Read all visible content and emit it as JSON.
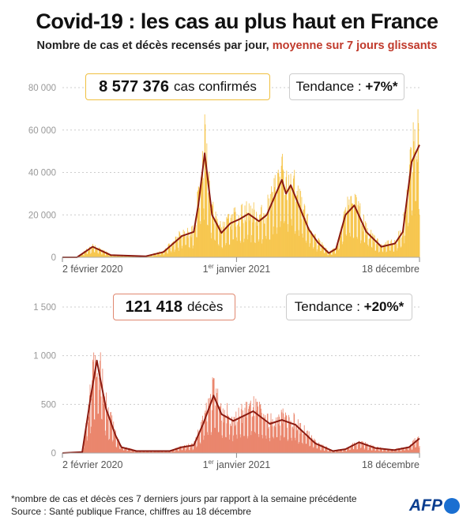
{
  "title": "Covid-19 : les cas au plus haut en France",
  "subtitle": {
    "main": "Nombre de cas et décès recensés par jour,",
    "highlight": "moyenne sur 7 jours glissants"
  },
  "colors": {
    "cases_bars": "#f6bf3a",
    "deaths_bars": "#e8775a",
    "average_line": "#8b1a10",
    "grid": "#cccccc"
  },
  "chart_data": [
    {
      "type": "bar",
      "name": "cas confirmés",
      "total_value": "8 577 376",
      "total_label": "cas confirmés",
      "trend_label": "Tendance :",
      "trend_value": "+7%*",
      "xlim": [
        "2020-02-02",
        "2021-12-18"
      ],
      "x_ticks": [
        {
          "date": "2020-02-02",
          "label": "2 février 2020"
        },
        {
          "date": "2021-01-01",
          "label_pre": "1",
          "label_sup": "er",
          "label_post": " janvier 2021"
        },
        {
          "date": "2021-12-18",
          "label": "18 décembre"
        }
      ],
      "ylim": [
        0,
        80000
      ],
      "y_ticks": [
        {
          "v": 0,
          "label": "0"
        },
        {
          "v": 20000,
          "label": "20 000"
        },
        {
          "v": 40000,
          "label": "40 000"
        },
        {
          "v": 60000,
          "label": "60 000"
        },
        {
          "v": 80000,
          "label": "80 000"
        }
      ],
      "grid": true,
      "moving_average": [
        [
          "2020-02-02",
          0
        ],
        [
          "2020-03-01",
          0
        ],
        [
          "2020-03-31",
          5000
        ],
        [
          "2020-05-05",
          1000
        ],
        [
          "2020-07-11",
          500
        ],
        [
          "2020-08-14",
          2500
        ],
        [
          "2020-09-18",
          10000
        ],
        [
          "2020-10-11",
          12000
        ],
        [
          "2020-10-20",
          25000
        ],
        [
          "2020-11-01",
          49000
        ],
        [
          "2020-11-15",
          20000
        ],
        [
          "2020-12-03",
          11500
        ],
        [
          "2020-12-20",
          16000
        ],
        [
          "2021-01-07",
          18000
        ],
        [
          "2021-01-24",
          20500
        ],
        [
          "2021-02-13",
          17000
        ],
        [
          "2021-02-28",
          20000
        ],
        [
          "2021-03-29",
          36500
        ],
        [
          "2021-04-06",
          30000
        ],
        [
          "2021-04-15",
          34000
        ],
        [
          "2021-05-08",
          20000
        ],
        [
          "2021-05-20",
          13000
        ],
        [
          "2021-06-06",
          7000
        ],
        [
          "2021-06-27",
          2000
        ],
        [
          "2021-07-11",
          4000
        ],
        [
          "2021-07-29",
          20000
        ],
        [
          "2021-08-15",
          24500
        ],
        [
          "2021-09-07",
          12000
        ],
        [
          "2021-10-06",
          5000
        ],
        [
          "2021-11-01",
          6500
        ],
        [
          "2021-11-16",
          12000
        ],
        [
          "2021-12-03",
          45000
        ],
        [
          "2021-12-18",
          53000
        ]
      ]
    },
    {
      "type": "bar",
      "name": "décès",
      "total_value": "121 418",
      "total_label": "décès",
      "trend_label": "Tendance :",
      "trend_value": "+20%*",
      "xlim": [
        "2020-02-02",
        "2021-12-18"
      ],
      "x_ticks": [
        {
          "date": "2020-02-02",
          "label": "2 février 2020"
        },
        {
          "date": "2021-01-01",
          "label_pre": "1",
          "label_sup": "er",
          "label_post": " janvier 2021"
        },
        {
          "date": "2021-12-18",
          "label": "18 décembre"
        }
      ],
      "ylim": [
        0,
        1500
      ],
      "y_ticks": [
        {
          "v": 0,
          "label": "0"
        },
        {
          "v": 500,
          "label": "500"
        },
        {
          "v": 1000,
          "label": "1 000"
        },
        {
          "v": 1500,
          "label": "1 500"
        }
      ],
      "grid": true,
      "moving_average": [
        [
          "2020-02-02",
          0
        ],
        [
          "2020-03-11",
          10
        ],
        [
          "2020-03-28",
          600
        ],
        [
          "2020-04-08",
          950
        ],
        [
          "2020-04-14",
          780
        ],
        [
          "2020-04-26",
          450
        ],
        [
          "2020-05-14",
          180
        ],
        [
          "2020-05-25",
          60
        ],
        [
          "2020-06-23",
          20
        ],
        [
          "2020-08-26",
          20
        ],
        [
          "2020-09-18",
          60
        ],
        [
          "2020-10-11",
          80
        ],
        [
          "2020-10-29",
          300
        ],
        [
          "2020-11-18",
          590
        ],
        [
          "2020-12-03",
          400
        ],
        [
          "2020-12-26",
          330
        ],
        [
          "2021-02-02",
          430
        ],
        [
          "2021-03-06",
          300
        ],
        [
          "2021-03-29",
          340
        ],
        [
          "2021-04-24",
          290
        ],
        [
          "2021-06-01",
          100
        ],
        [
          "2021-07-05",
          20
        ],
        [
          "2021-07-29",
          40
        ],
        [
          "2021-08-24",
          110
        ],
        [
          "2021-09-25",
          50
        ],
        [
          "2021-10-30",
          30
        ],
        [
          "2021-11-28",
          60
        ],
        [
          "2021-12-18",
          150
        ]
      ]
    }
  ],
  "footer": {
    "note": "*nombre de cas et décès ces 7 derniers jours par rapport à la semaine précédente",
    "source": "Source : Santé publique France, chiffres au 18 décembre",
    "logo": "AFP"
  }
}
